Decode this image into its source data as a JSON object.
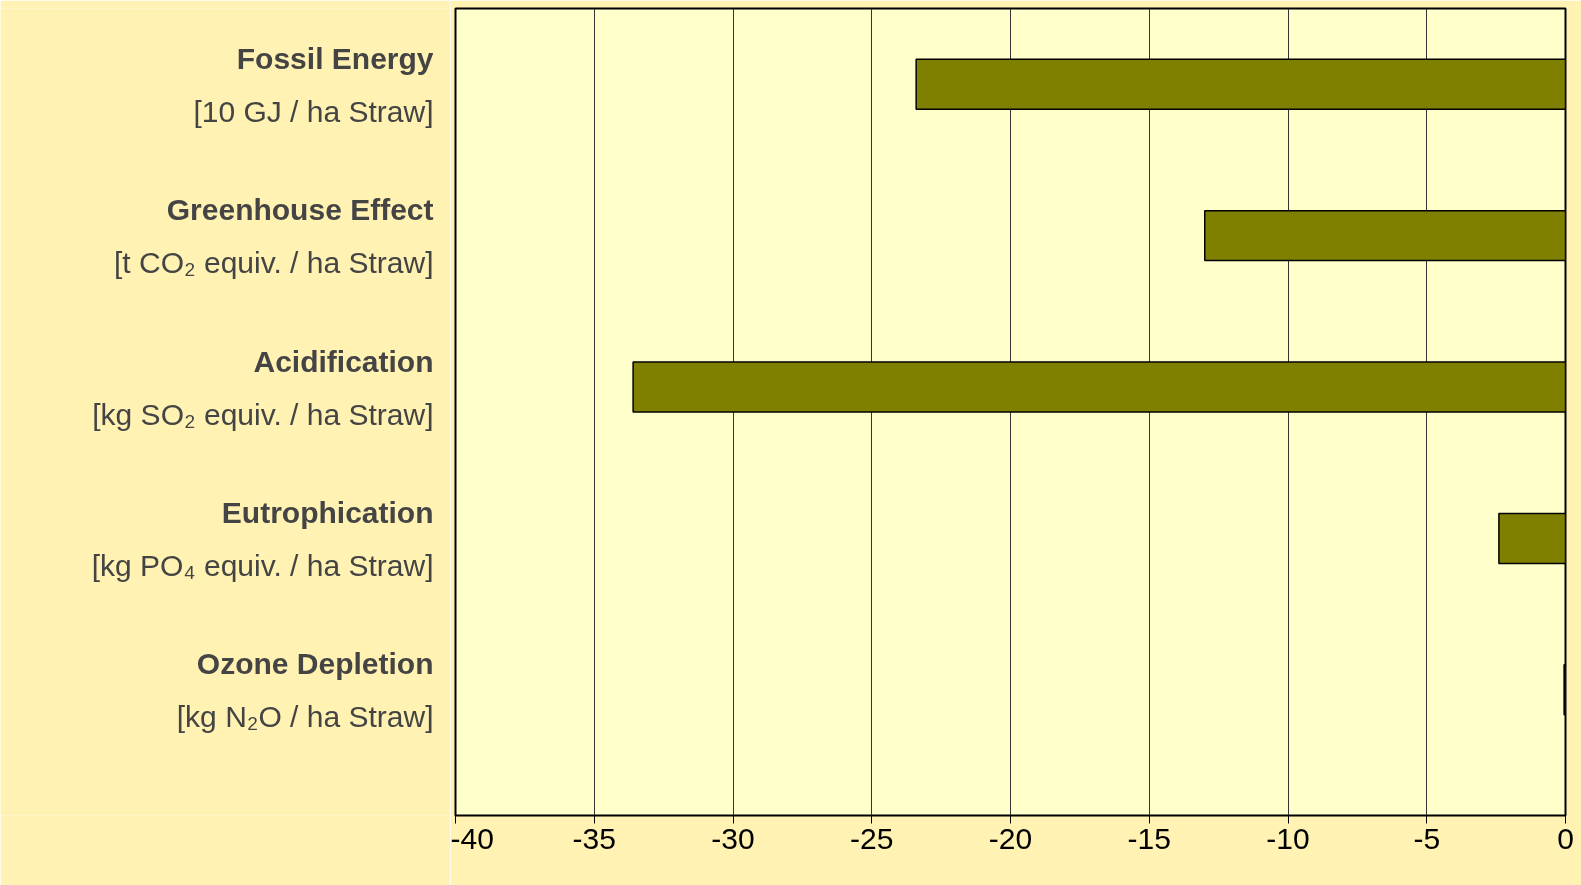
{
  "chart_data": {
    "type": "bar",
    "orientation": "horizontal",
    "categories": [
      "Fossil Energy\n[10 GJ / ha Straw]",
      "Greenhouse Effect\n[t CO₂ equiv. / ha Straw]",
      "Acidification\n[kg SO₂ equiv. / ha Straw]",
      "Eutrophication\n[kg PO₄ equiv. / ha Straw]",
      "Ozone Depletion\n[kg N₂O / ha Straw]"
    ],
    "values": [
      -23.4,
      -13,
      -33.6,
      -2.4,
      -0.05
    ],
    "color": "#808000",
    "xlim": [
      -40,
      0
    ],
    "xticks": [
      -40,
      -35,
      -30,
      -25,
      -20,
      -15,
      -10,
      -5,
      0
    ],
    "grid": "x"
  }
}
